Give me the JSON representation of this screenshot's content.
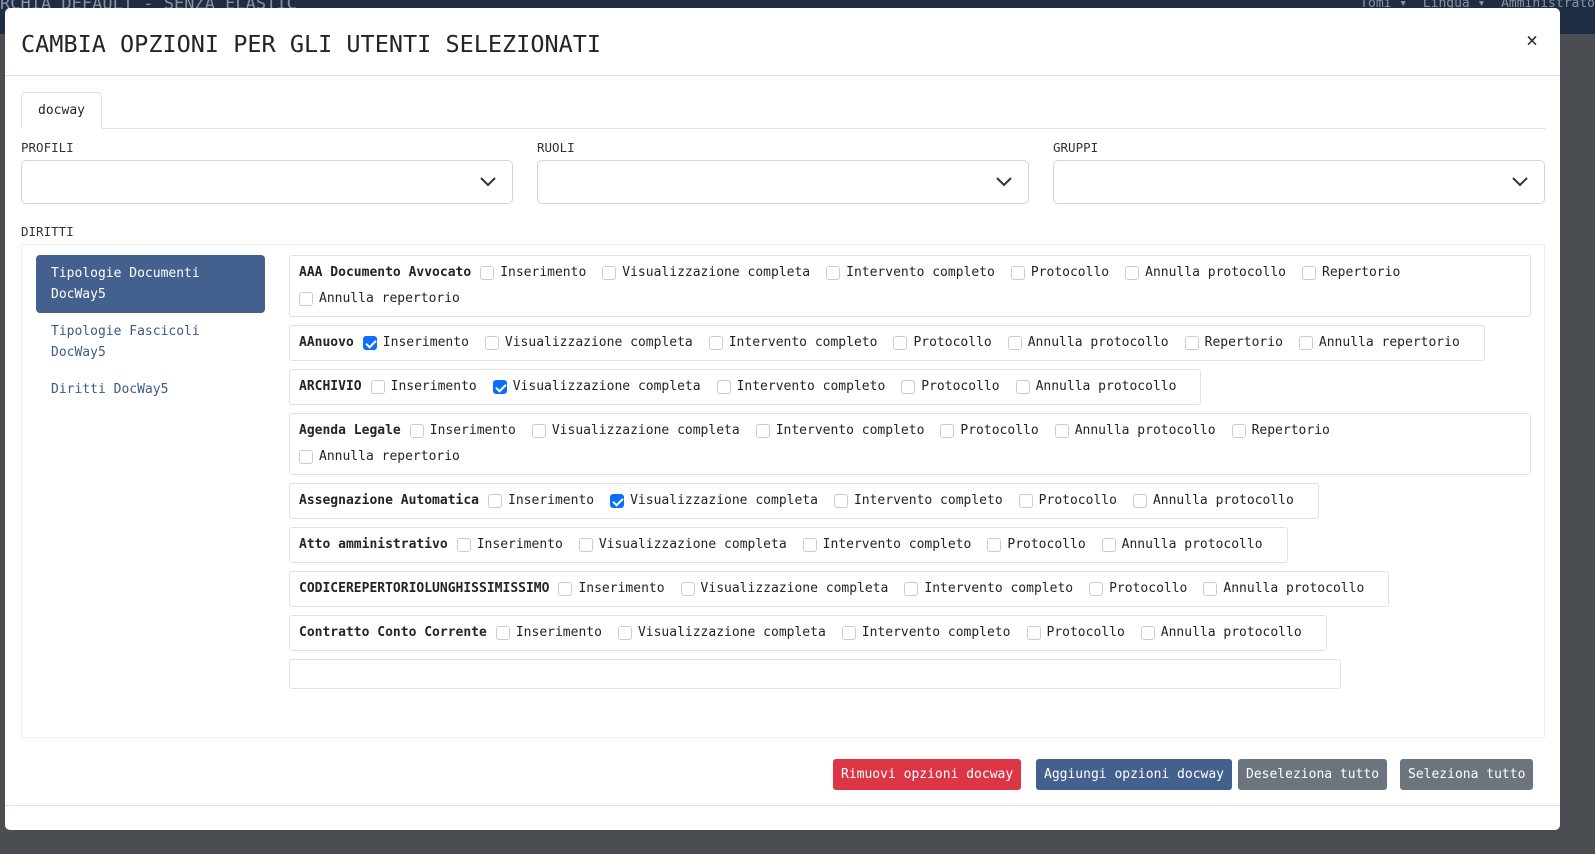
{
  "background": {
    "title": "RCHIA DEFAULT - SENZA ELASTIC",
    "user": "Tomi",
    "language": "Lingua",
    "role": "Amministrato"
  },
  "modal": {
    "title": "CAMBIA OPZIONI PER GLI UTENTI SELEZIONATI",
    "close": "×"
  },
  "tabs": [
    {
      "label": "docway",
      "active": true
    }
  ],
  "fields": {
    "profili": "PROFILI",
    "ruoli": "RUOLI",
    "gruppi": "GRUPPI",
    "diritti": "DIRITTI"
  },
  "nav": [
    {
      "label": "Tipologie Documenti DocWay5",
      "active": true
    },
    {
      "label": "Tipologie Fascicoli DocWay5",
      "active": false
    },
    {
      "label": "Diritti DocWay5",
      "active": false
    }
  ],
  "rows": [
    {
      "name": "AAA Documento Avvocato",
      "options": [
        [
          "Inserimento",
          false
        ],
        [
          "Visualizzazione completa",
          false
        ],
        [
          "Intervento completo",
          false
        ],
        [
          "Protocollo",
          false
        ],
        [
          "Annulla protocollo",
          false
        ],
        [
          "Repertorio",
          false
        ],
        [
          "Annulla repertorio",
          false
        ]
      ]
    },
    {
      "name": "AAnuovo",
      "options": [
        [
          "Inserimento",
          true
        ],
        [
          "Visualizzazione completa",
          false
        ],
        [
          "Intervento completo",
          false
        ],
        [
          "Protocollo",
          false
        ],
        [
          "Annulla protocollo",
          false
        ],
        [
          "Repertorio",
          false
        ],
        [
          "Annulla repertorio",
          false
        ]
      ]
    },
    {
      "name": "ARCHIVIO",
      "options": [
        [
          "Inserimento",
          false
        ],
        [
          "Visualizzazione completa",
          true
        ],
        [
          "Intervento completo",
          false
        ],
        [
          "Protocollo",
          false
        ],
        [
          "Annulla protocollo",
          false
        ]
      ]
    },
    {
      "name": "Agenda Legale",
      "options": [
        [
          "Inserimento",
          false
        ],
        [
          "Visualizzazione completa",
          false
        ],
        [
          "Intervento completo",
          false
        ],
        [
          "Protocollo",
          false
        ],
        [
          "Annulla protocollo",
          false
        ],
        [
          "Repertorio",
          false
        ],
        [
          "Annulla repertorio",
          false
        ]
      ]
    },
    {
      "name": "Assegnazione Automatica",
      "options": [
        [
          "Inserimento",
          false
        ],
        [
          "Visualizzazione completa",
          true
        ],
        [
          "Intervento completo",
          false
        ],
        [
          "Protocollo",
          false
        ],
        [
          "Annulla protocollo",
          false
        ]
      ]
    },
    {
      "name": "Atto amministrativo",
      "options": [
        [
          "Inserimento",
          false
        ],
        [
          "Visualizzazione completa",
          false
        ],
        [
          "Intervento completo",
          false
        ],
        [
          "Protocollo",
          false
        ],
        [
          "Annulla protocollo",
          false
        ]
      ]
    },
    {
      "name": "CODICEREPERTORIOLUNGHISSIMISSIMO",
      "options": [
        [
          "Inserimento",
          false
        ],
        [
          "Visualizzazione completa",
          false
        ],
        [
          "Intervento completo",
          false
        ],
        [
          "Protocollo",
          false
        ],
        [
          "Annulla protocollo",
          false
        ]
      ]
    },
    {
      "name": "Contratto Conto Corrente",
      "options": [
        [
          "Inserimento",
          false
        ],
        [
          "Visualizzazione completa",
          false
        ],
        [
          "Intervento completo",
          false
        ],
        [
          "Protocollo",
          false
        ],
        [
          "Annulla protocollo",
          false
        ]
      ]
    }
  ],
  "footer": {
    "remove": "Rimuovi opzioni docway",
    "add": "Aggiungi opzioni docway",
    "deselect": "Deseleziona tutto",
    "select": "Seleziona tutto"
  },
  "colors": {
    "danger": "#dc3545",
    "primary": "#44608f",
    "secondary": "#6c757d",
    "checked": "#0d6efd"
  }
}
